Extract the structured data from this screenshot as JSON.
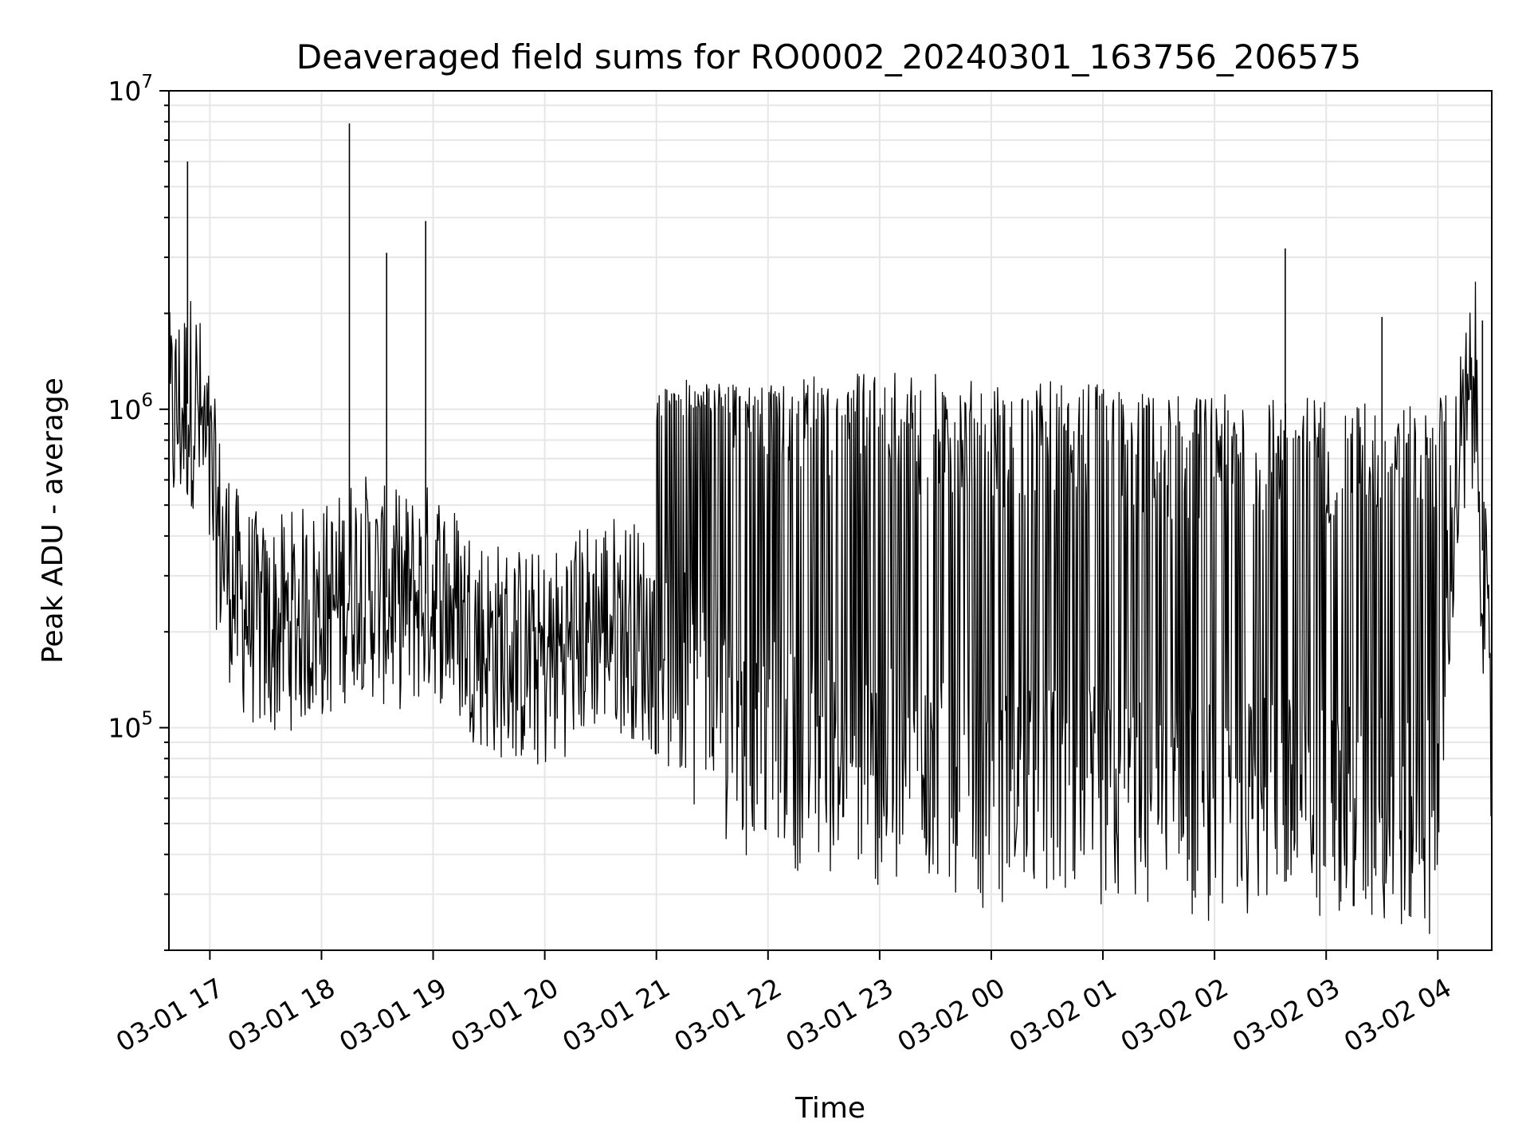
{
  "chart_data": {
    "type": "line",
    "title": "Deaveraged field sums for RO0002_20240301_163756_206575",
    "xlabel": "Time",
    "ylabel": "Peak ADU - average",
    "yscale": "log",
    "grid": true,
    "xlim": [
      "2024-03-01 16:38",
      "2024-03-02 04:29"
    ],
    "ylim": [
      20000,
      10000000
    ],
    "x_ticks": [
      "03-01 17",
      "03-01 18",
      "03-01 19",
      "03-01 20",
      "03-01 21",
      "03-01 22",
      "03-01 23",
      "03-02 00",
      "03-02 01",
      "03-02 02",
      "03-02 03",
      "03-02 04"
    ],
    "y_ticks": [
      {
        "value": 100000,
        "base": "10",
        "exp": "5"
      },
      {
        "value": 1000000,
        "base": "10",
        "exp": "6"
      },
      {
        "value": 10000000,
        "base": "10",
        "exp": "7"
      }
    ],
    "series": [
      {
        "color": "#000000",
        "x": [
          "2024-03-01 16:38",
          "2024-03-01 16:45",
          "2024-03-01 16:52",
          "2024-03-01 17:00",
          "2024-03-01 17:05",
          "2024-03-01 17:15",
          "2024-03-01 17:30",
          "2024-03-01 17:45",
          "2024-03-01 18:00",
          "2024-03-01 18:10",
          "2024-03-01 18:15",
          "2024-03-01 18:20",
          "2024-03-01 18:30",
          "2024-03-01 18:45",
          "2024-03-01 18:55",
          "2024-03-01 19:00",
          "2024-03-01 19:15",
          "2024-03-01 19:30",
          "2024-03-01 19:45",
          "2024-03-01 20:00",
          "2024-03-01 20:15",
          "2024-03-01 20:30",
          "2024-03-01 20:45",
          "2024-03-01 21:00",
          "2024-03-01 21:15",
          "2024-03-01 21:30",
          "2024-03-01 21:45",
          "2024-03-01 22:00",
          "2024-03-01 22:30",
          "2024-03-01 23:00",
          "2024-03-01 23:30",
          "2024-03-02 00:00",
          "2024-03-02 00:30",
          "2024-03-02 01:00",
          "2024-03-02 01:30",
          "2024-03-02 02:00",
          "2024-03-02 02:30",
          "2024-03-02 03:00",
          "2024-03-02 03:30",
          "2024-03-02 04:00",
          "2024-03-02 04:05",
          "2024-03-02 04:10",
          "2024-03-02 04:20",
          "2024-03-02 04:29"
        ],
        "y": [
          900000,
          1000000,
          1100000,
          600000,
          400000,
          250000,
          200000,
          220000,
          230000,
          250000,
          280000,
          300000,
          260000,
          250000,
          260000,
          280000,
          220000,
          180000,
          170000,
          160000,
          190000,
          220000,
          210000,
          180000,
          140000,
          110000,
          90000,
          85000,
          75000,
          70000,
          65000,
          60000,
          62000,
          60000,
          55000,
          55000,
          58000,
          55000,
          52000,
          50000,
          250000,
          600000,
          1200000,
          80000
        ],
        "peaks": {
          "x": [
            "2024-03-01 16:48",
            "2024-03-01 18:15",
            "2024-03-01 18:35",
            "2024-03-01 18:56",
            "2024-03-02 02:38",
            "2024-03-02 03:30",
            "2024-03-02 04:24"
          ],
          "y": [
            6000000,
            7900000,
            3100000,
            3900000,
            3200000,
            1950000,
            1900000
          ]
        }
      }
    ]
  }
}
